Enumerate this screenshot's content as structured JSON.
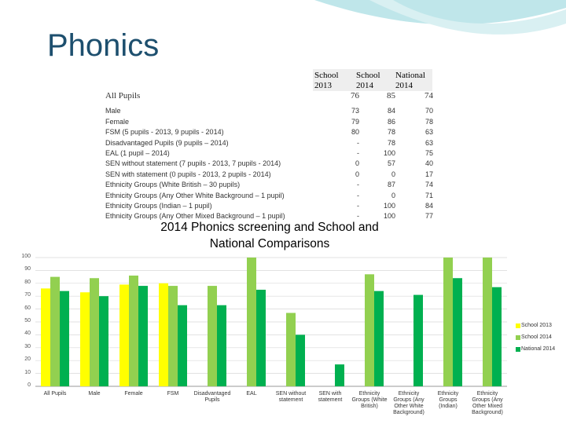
{
  "title": "Phonics",
  "table": {
    "header": [
      "School 2013",
      "School 2014",
      "National 2014"
    ],
    "rows": [
      [
        "All Pupils",
        76,
        85,
        74
      ],
      [
        "Male",
        73,
        84,
        70
      ],
      [
        "Female",
        79,
        86,
        78
      ],
      [
        "FSM (5 pupils - 2013, 9 pupils - 2014)",
        80,
        78,
        63
      ],
      [
        "Disadvantaged Pupils (9 pupils – 2014)",
        "-",
        78,
        63
      ],
      [
        "EAL (1 pupil – 2014)",
        "-",
        100,
        75
      ],
      [
        "SEN without statement (7 pupils - 2013, 7 pupils - 2014)",
        0,
        57,
        40
      ],
      [
        "SEN with statement (0 pupils - 2013, 2 pupils - 2014)",
        0,
        0,
        17
      ],
      [
        "Ethnicity Groups (White British – 30 pupils)",
        "-",
        87,
        74
      ],
      [
        "Ethnicity Groups (Any Other White Background – 1 pupil)",
        "-",
        0,
        71
      ],
      [
        "Ethnicity Groups (Indian – 1 pupil)",
        "-",
        100,
        84
      ],
      [
        "Ethnicity Groups (Any Other Mixed Background – 1 pupil)",
        "-",
        100,
        77
      ]
    ]
  },
  "chart_data": {
    "type": "bar",
    "title": "2014 Phonics screening and School and National Comparisons",
    "categories": [
      "All Pupils",
      "Male",
      "Female",
      "FSM",
      "Disadvantaged Pupils",
      "EAL",
      "SEN without statement",
      "SEN with statement",
      "Ethnicity Groups (White British)",
      "Ethnicity Groups (Any Other White Background)",
      "Ethnicity Groups (Indian)",
      "Ethnicity Groups (Any Other Mixed Background)"
    ],
    "series": [
      {
        "name": "School 2013",
        "color": "#ffff00",
        "values": [
          76,
          73,
          79,
          80,
          null,
          null,
          0,
          0,
          null,
          null,
          null,
          null
        ]
      },
      {
        "name": "School 2014",
        "color": "#92d050",
        "values": [
          85,
          84,
          86,
          78,
          78,
          100,
          57,
          0,
          87,
          0,
          100,
          100
        ]
      },
      {
        "name": "National 2014",
        "color": "#00b050",
        "values": [
          74,
          70,
          78,
          63,
          63,
          75,
          40,
          17,
          74,
          71,
          84,
          77
        ]
      }
    ],
    "ylim": [
      0,
      100
    ],
    "yticks": [
      0,
      10,
      20,
      30,
      40,
      50,
      60,
      70,
      80,
      90,
      100
    ],
    "grid": true,
    "legend": "right"
  }
}
